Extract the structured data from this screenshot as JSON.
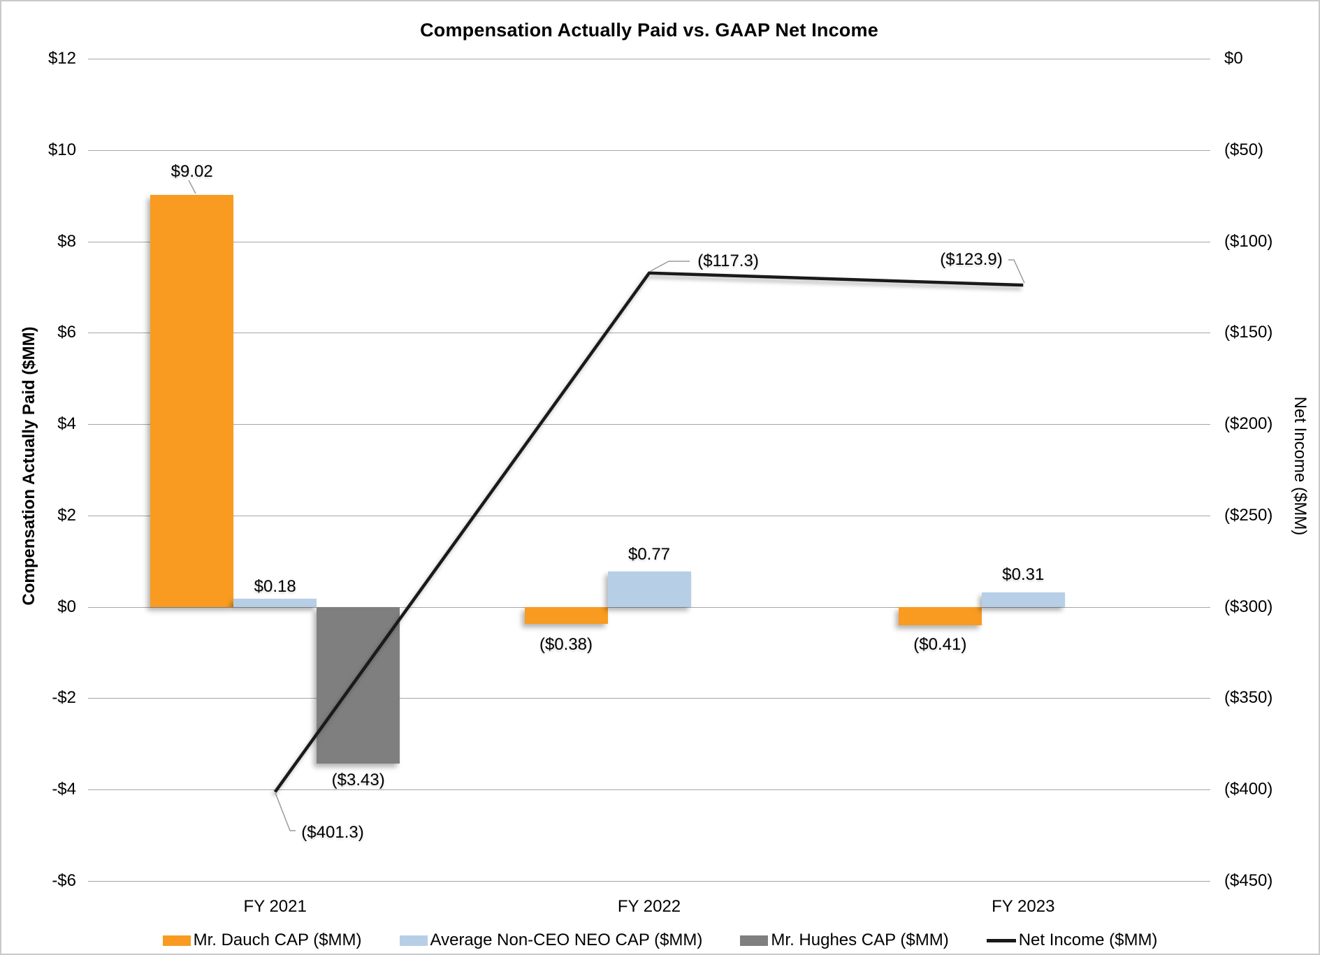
{
  "title": "Compensation Actually Paid vs. GAAP Net Income",
  "chart_data": {
    "type": "bar+line combo",
    "grid": "horizontal",
    "legend_position": "bottom",
    "categories": [
      "FY 2021",
      "FY 2022",
      "FY 2023"
    ],
    "left_axis": {
      "title": "Compensation Actually Paid ($MM)",
      "max": 12,
      "min": -6,
      "step": 2,
      "ticks": [
        "$12",
        "$10",
        "$8",
        "$6",
        "$4",
        "$2",
        "$0",
        "-$2",
        "-$4",
        "-$6"
      ]
    },
    "right_axis": {
      "title": "Net Income ($MM)",
      "max": 0,
      "min": -450,
      "step": 50,
      "ticks": [
        "$0",
        "($50)",
        "($100)",
        "($150)",
        "($200)",
        "($250)",
        "($300)",
        "($350)",
        "($400)",
        "($450)"
      ]
    },
    "series": [
      {
        "name": "Mr. Dauch CAP ($MM)",
        "slug": "dauch",
        "type": "bar",
        "axis": "left",
        "color": "#F89B20",
        "values": [
          9.02,
          -0.38,
          -0.41
        ],
        "labels": [
          "$9.02",
          "($0.38)",
          "($0.41)"
        ]
      },
      {
        "name": "Average Non-CEO NEO CAP ($MM)",
        "slug": "neo",
        "type": "bar",
        "axis": "left",
        "color": "#B6CFE7",
        "values": [
          0.18,
          0.77,
          0.31
        ],
        "labels": [
          "$0.18",
          "$0.77",
          "$0.31"
        ]
      },
      {
        "name": "Mr. Hughes CAP ($MM)",
        "slug": "hughes",
        "type": "bar",
        "axis": "left",
        "color": "#7F7F7F",
        "values": [
          -3.43,
          null,
          null
        ],
        "labels": [
          "($3.43)",
          null,
          null
        ]
      },
      {
        "name": "Net Income ($MM)",
        "slug": "net-income",
        "type": "line",
        "axis": "right",
        "color": "#1a1a1a",
        "values": [
          -401.3,
          -117.3,
          -123.9
        ],
        "labels": [
          "($401.3)",
          "($117.3)",
          "($123.9)"
        ]
      }
    ]
  }
}
